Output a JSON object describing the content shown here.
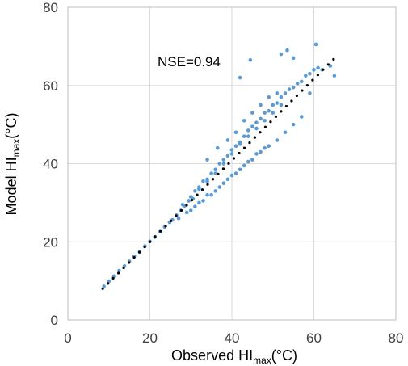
{
  "chart_data": {
    "type": "scatter",
    "title": "",
    "annotation": "NSE=0.94",
    "xlabel": {
      "main": "Observed HI",
      "sub": "max",
      "unit": "(°C)"
    },
    "ylabel": {
      "main": "Model HI",
      "sub": "max",
      "unit": "(°C)"
    },
    "xlim": [
      0,
      80
    ],
    "ylim": [
      0,
      80
    ],
    "xticks": [
      "0",
      "20",
      "40",
      "60",
      "80"
    ],
    "yticks": [
      "0",
      "20",
      "40",
      "60",
      "80"
    ],
    "grid": true,
    "legend": "none",
    "colors": {
      "points": "#5B9BD5",
      "fit_line": "#000000",
      "grid": "#D9D9D9",
      "frame": "#BFBFBF"
    },
    "series": [
      {
        "role": "observations",
        "x": [
          8.8,
          10.0,
          11.2,
          12.5,
          13.8,
          15.0,
          16.2,
          17.5,
          18.8,
          20.0,
          21.2,
          22.5,
          23.6,
          24.8,
          25.5,
          26.5,
          27.5,
          28.5,
          29.5,
          30.5,
          31.0,
          32.0,
          33.0,
          34.0,
          35.0,
          36.0,
          37.0,
          38.0,
          39.0,
          40.0,
          41.0,
          42.0,
          43.0,
          44.0,
          45.0,
          46.0,
          47.0,
          48.0,
          49.0,
          50.0,
          51.0,
          52.0,
          53.0,
          54.0,
          55.0,
          56.0,
          57.0,
          58.0,
          59.0,
          60.0,
          61.0,
          62.0,
          64.0,
          65.0,
          27.0,
          29.0,
          31.0,
          33.0,
          35.0,
          37.0,
          39.0,
          41.0,
          43.0,
          45.0,
          47.0,
          49.0,
          51.0,
          53.0,
          55.0,
          57.0,
          28.0,
          30.0,
          32.0,
          34.0,
          36.0,
          38.0,
          40.0,
          42.0,
          44.0,
          46.0,
          48.0,
          50.0,
          52.0,
          30.0,
          32.0,
          34.0,
          36.0,
          38.0,
          40.0,
          42.0,
          44.0,
          46.0,
          48.0,
          39.0,
          41.0,
          43.0,
          45.0,
          47.0,
          49.0,
          51.0,
          44.5,
          42.0,
          52.0,
          53.5,
          55.0,
          60.5,
          59.0,
          34.0,
          36.5
        ],
        "y": [
          8.6,
          9.9,
          11.2,
          12.6,
          13.8,
          15.0,
          16.3,
          17.4,
          18.9,
          20.1,
          21.2,
          22.6,
          23.8,
          25.0,
          25.6,
          26.8,
          28.0,
          29.2,
          30.5,
          31.0,
          33.0,
          34.0,
          35.5,
          36.0,
          37.5,
          38.5,
          40.0,
          41.0,
          42.0,
          43.5,
          44.5,
          45.5,
          47.0,
          48.5,
          49.5,
          50.5,
          51.5,
          53.0,
          53.5,
          55.0,
          55.5,
          57.0,
          58.0,
          59.0,
          59.5,
          60.5,
          61.0,
          62.5,
          63.0,
          64.0,
          64.5,
          64.0,
          65.0,
          62.5,
          26.0,
          27.5,
          29.0,
          30.5,
          32.0,
          34.0,
          36.0,
          37.5,
          39.5,
          41.0,
          43.0,
          44.5,
          46.0,
          48.0,
          50.0,
          52.0,
          29.5,
          31.5,
          33.5,
          35.5,
          37.5,
          40.0,
          42.5,
          45.0,
          47.0,
          49.0,
          51.0,
          53.0,
          55.0,
          28.0,
          30.0,
          32.0,
          33.0,
          35.0,
          37.0,
          38.5,
          40.5,
          42.5,
          44.0,
          46.0,
          48.0,
          51.0,
          53.0,
          55.0,
          57.0,
          58.0,
          66.5,
          62.0,
          68.0,
          69.0,
          67.0,
          70.5,
          58.0,
          41.0,
          44.0
        ]
      },
      {
        "role": "fit_line",
        "x": [
          8.5,
          64.8
        ],
        "y": [
          8.0,
          66.7
        ]
      }
    ]
  }
}
